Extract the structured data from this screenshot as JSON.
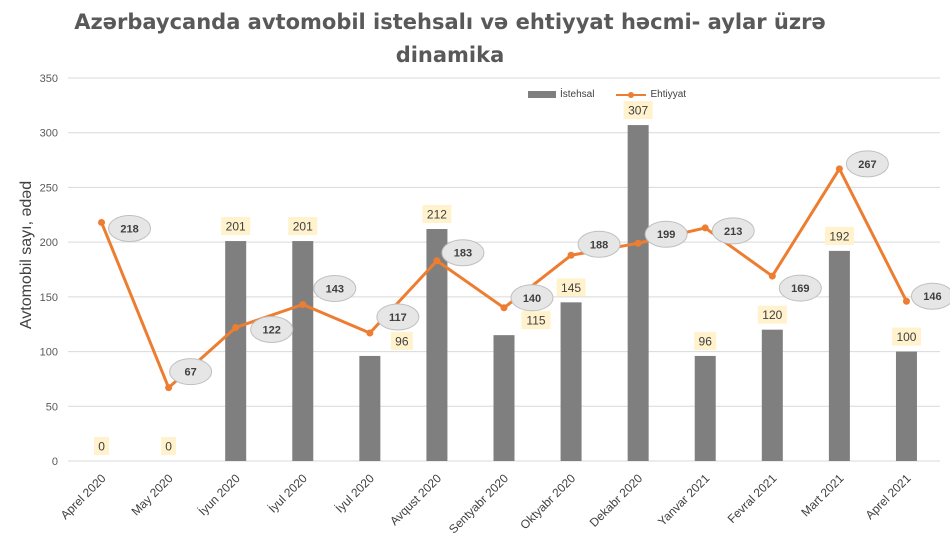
{
  "chart_data": {
    "type": "bar",
    "title": "Azərbaycanda avtomobil istehsalı və ehtiyyat həcmi- aylar üzrə dinamika",
    "ylabel": "Avtomobil sayı, ədəd",
    "xlabel": "",
    "ylim": [
      0,
      350
    ],
    "yticks": [
      0,
      50,
      100,
      150,
      200,
      250,
      300,
      350
    ],
    "grid": true,
    "legend_position": "top-right",
    "categories": [
      "Aprel 2020",
      "May 2020",
      "İyun 2020",
      "İyul 2020",
      "İyul 2020",
      "Avqust 2020",
      "Sentyabr 2020",
      "Oktyabr 2020",
      "Dekabr 2020",
      "Yanvar 2021",
      "Fevral 2021",
      "Mart 2021",
      "Aprel 2021"
    ],
    "series": [
      {
        "name": "İstehsal",
        "type": "bar",
        "color": "#7f7f7f",
        "values": [
          0,
          0,
          201,
          201,
          96,
          212,
          115,
          145,
          307,
          96,
          120,
          192,
          100
        ]
      },
      {
        "name": "Ehtiyyat",
        "type": "line",
        "color": "#ed7d31",
        "values": [
          218,
          67,
          122,
          143,
          117,
          183,
          140,
          188,
          199,
          213,
          169,
          267,
          146
        ]
      }
    ]
  }
}
